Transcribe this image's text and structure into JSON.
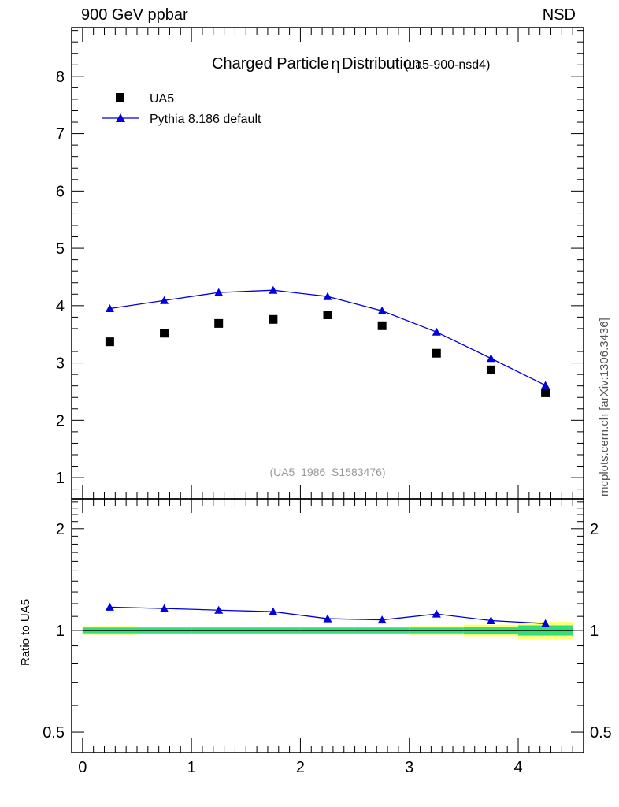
{
  "header": {
    "left": "900 GeV ppbar",
    "right": "NSD"
  },
  "side_note": "mcplots.cern.ch [arXiv:1306.3436]",
  "chart_data": [
    {
      "type": "scatter",
      "title": "Charged Particle",
      "title_symbol": "η",
      "title_rest": "Distribution",
      "title_tag": "(ua5-900-nsd4)",
      "watermark": "(UA5_1986_S1583476)",
      "xlim": [
        -0.1,
        4.6
      ],
      "ylim": [
        0.63,
        8.85
      ],
      "y_ticks": [
        1,
        2,
        3,
        4,
        5,
        6,
        7,
        8
      ],
      "legend_position": "top-left",
      "series": [
        {
          "name": "UA5",
          "marker": "square",
          "color": "#000000",
          "x": [
            0.25,
            0.75,
            1.25,
            1.75,
            2.25,
            2.75,
            3.25,
            3.75,
            4.25
          ],
          "y": [
            3.37,
            3.52,
            3.69,
            3.76,
            3.84,
            3.65,
            3.17,
            2.88,
            2.48
          ]
        },
        {
          "name": "Pythia 8.186 default",
          "marker": "triangle",
          "color": "#0000dd",
          "x": [
            0.25,
            0.75,
            1.25,
            1.75,
            2.25,
            2.75,
            3.25,
            3.75,
            4.25
          ],
          "y": [
            3.95,
            4.09,
            4.23,
            4.27,
            4.16,
            3.91,
            3.54,
            3.08,
            2.61
          ]
        }
      ]
    },
    {
      "type": "line",
      "ylabel": "Ratio to UA5",
      "xlim": [
        -0.1,
        4.6
      ],
      "ylim": [
        0.435,
        2.45
      ],
      "y_scale": "log",
      "x_ticks": [
        0,
        1,
        2,
        3,
        4
      ],
      "y_ticks": [
        0.5,
        1,
        2
      ],
      "reference": 1,
      "bands": {
        "x_edges": [
          0,
          0.5,
          1,
          1.5,
          2,
          2.5,
          3,
          3.5,
          4,
          4.5
        ],
        "inner_rel": [
          0.02,
          0.02,
          0.02,
          0.02,
          0.02,
          0.02,
          0.02,
          0.025,
          0.035
        ],
        "outer_rel": [
          0.03,
          0.025,
          0.025,
          0.025,
          0.025,
          0.025,
          0.03,
          0.04,
          0.06
        ],
        "inner_color": "#33dd77",
        "outer_color": "#ffff77"
      },
      "series": [
        {
          "name": "Pythia 8.186 default",
          "marker": "triangle",
          "color": "#0000dd",
          "x": [
            0.25,
            0.75,
            1.25,
            1.75,
            2.25,
            2.75,
            3.25,
            3.75,
            4.25
          ],
          "y": [
            1.172,
            1.161,
            1.148,
            1.136,
            1.083,
            1.074,
            1.118,
            1.069,
            1.048
          ]
        }
      ]
    }
  ]
}
